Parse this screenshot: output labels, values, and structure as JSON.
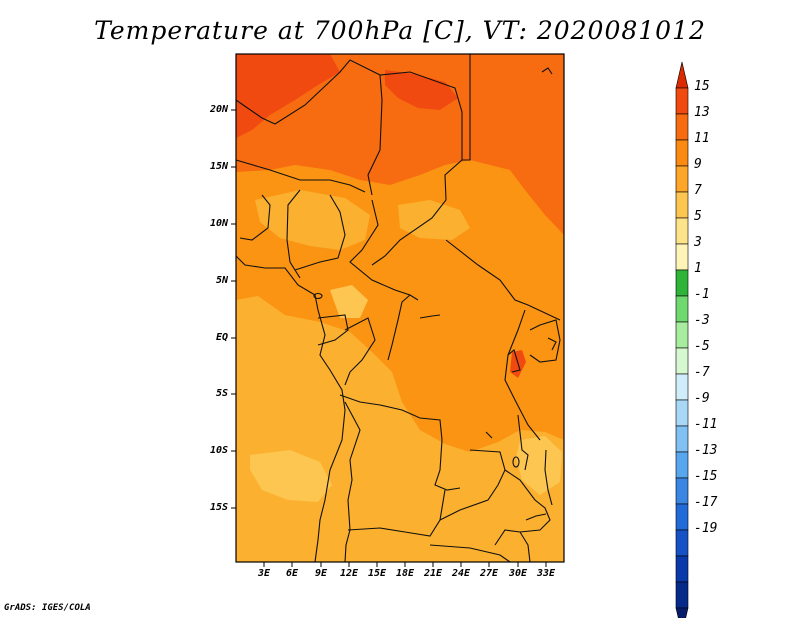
{
  "title": "Temperature at 700hPa [C], VT: 2020081012",
  "credit": "GrADS: IGES/COLA",
  "lat_labels": [
    "20N",
    "15N",
    "10N",
    "5N",
    "EQ",
    "5S",
    "10S",
    "15S"
  ],
  "lon_labels": [
    "3E",
    "6E",
    "9E",
    "12E",
    "15E",
    "18E",
    "21E",
    "24E",
    "27E",
    "30E",
    "33E"
  ],
  "colorbar": {
    "labels": [
      "15",
      "13",
      "11",
      "9",
      "7",
      "5",
      "3",
      "1",
      "-1",
      "-3",
      "-5",
      "-7",
      "-9",
      "-11",
      "-13",
      "-15",
      "-17",
      "-19"
    ],
    "colors": [
      "#dc2a00",
      "#f04a10",
      "#f76c10",
      "#fb8a12",
      "#fea62a",
      "#fcc650",
      "#fde48a",
      "#fff4b8",
      "#2fb43a",
      "#6fd86f",
      "#a8eca0",
      "#d6f8d0",
      "#d0eefa",
      "#a8d8f6",
      "#80c0f2",
      "#58a6ee",
      "#3a86e2",
      "#226ad8",
      "#1652c6",
      "#0a3aaa",
      "#062a8a",
      "#061c6a"
    ]
  },
  "map_colors": {
    "t13": "#f04a10",
    "t11": "#f76c10",
    "t9": "#fb9412",
    "t7": "#fbb030",
    "t5": "#fcc650"
  }
}
